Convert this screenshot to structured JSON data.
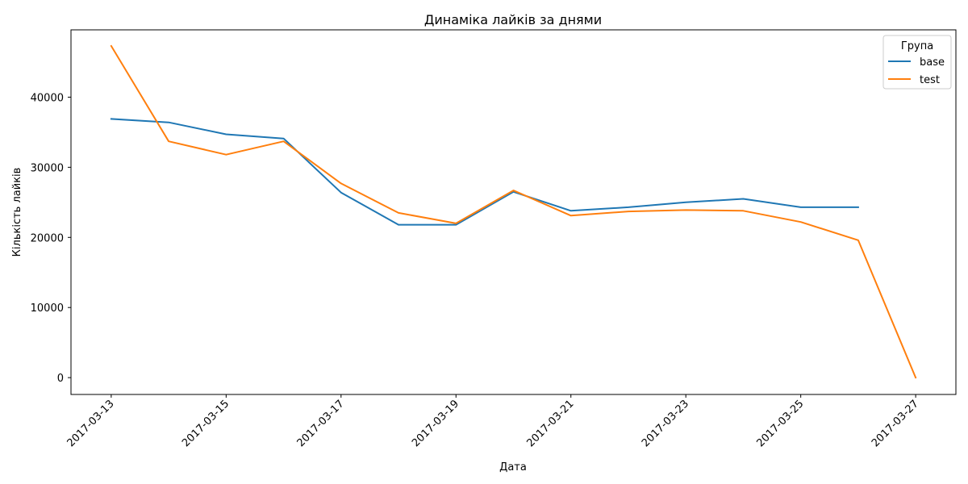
{
  "chart_data": {
    "type": "line",
    "title": "Динаміка лайків за днями",
    "xlabel": "Дата",
    "ylabel": "Кількість лайків",
    "x_ticks": [
      "2017-03-13",
      "2017-03-15",
      "2017-03-17",
      "2017-03-19",
      "2017-03-21",
      "2017-03-23",
      "2017-03-25",
      "2017-03-27"
    ],
    "y_ticks": [
      "0",
      "10000",
      "20000",
      "30000",
      "40000"
    ],
    "xlim": [
      "2017-03-12T07:12",
      "2017-03-27T16:48"
    ],
    "ylim": [
      -2400,
      49600
    ],
    "grid": false,
    "legend": {
      "title": "Група",
      "position": "top-right"
    },
    "series": [
      {
        "name": "base",
        "color": "#1f77b4",
        "x": [
          "2017-03-13",
          "2017-03-14",
          "2017-03-15",
          "2017-03-16",
          "2017-03-17",
          "2017-03-18",
          "2017-03-19",
          "2017-03-20",
          "2017-03-21",
          "2017-03-22",
          "2017-03-23",
          "2017-03-24",
          "2017-03-25",
          "2017-03-26"
        ],
        "values": [
          36900,
          36400,
          34700,
          34100,
          26400,
          21800,
          21800,
          26500,
          23800,
          24300,
          25000,
          25500,
          24300,
          24300
        ]
      },
      {
        "name": "test",
        "color": "#ff7f0e",
        "x": [
          "2017-03-13",
          "2017-03-14",
          "2017-03-15",
          "2017-03-16",
          "2017-03-17",
          "2017-03-18",
          "2017-03-19",
          "2017-03-20",
          "2017-03-21",
          "2017-03-22",
          "2017-03-23",
          "2017-03-24",
          "2017-03-25",
          "2017-03-26",
          "2017-03-27"
        ],
        "values": [
          47300,
          33700,
          31800,
          33700,
          27700,
          23500,
          22000,
          26700,
          23100,
          23700,
          23900,
          23800,
          22200,
          19600,
          0
        ]
      }
    ]
  }
}
